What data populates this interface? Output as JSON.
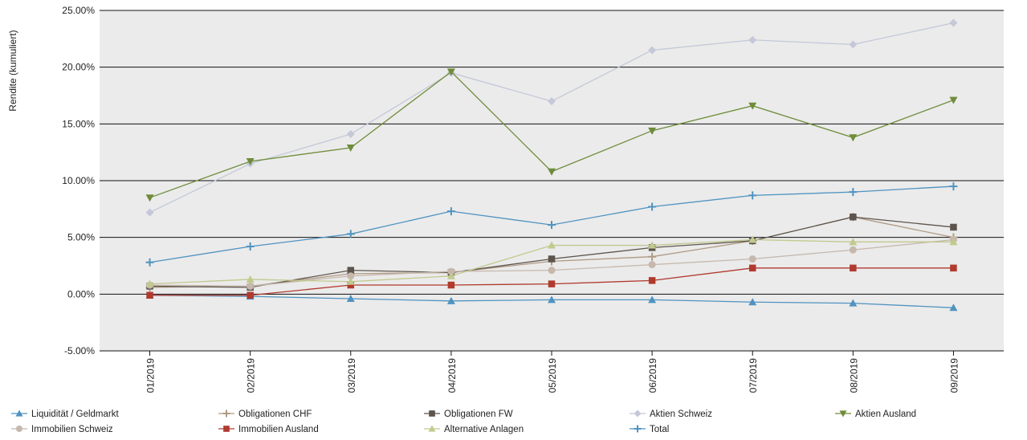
{
  "chart_data": {
    "type": "line",
    "ylabel": "Rendite (kumuliert)",
    "xlabel": "",
    "categories": [
      "01/2019",
      "02/2019",
      "03/2019",
      "04/2019",
      "05/2019",
      "06/2019",
      "07/2019",
      "08/2019",
      "09/2019"
    ],
    "ylim": [
      -5,
      25
    ],
    "yticks": [
      -5,
      0,
      5,
      10,
      15,
      20,
      25
    ],
    "ytick_labels": [
      "-5.00%",
      "0.00%",
      "5.00%",
      "10.00%",
      "15.00%",
      "20.00%",
      "25.00%"
    ],
    "grid": "horizontal",
    "background": "#ebebeb",
    "legend_position": "bottom",
    "series": [
      {
        "name": "Liquidität / Geldmarkt",
        "color": "#4f93c0",
        "marker": "triangle-up",
        "values": [
          -0.1,
          -0.2,
          -0.4,
          -0.6,
          -0.5,
          -0.5,
          -0.7,
          -0.8,
          -1.2
        ]
      },
      {
        "name": "Obligationen CHF",
        "color": "#b09a84",
        "marker": "plus",
        "values": [
          0.6,
          0.7,
          1.8,
          1.9,
          2.9,
          3.3,
          4.7,
          6.8,
          5.0
        ]
      },
      {
        "name": "Obligationen FW",
        "color": "#5d554d",
        "marker": "square",
        "values": [
          0.7,
          0.6,
          2.1,
          1.9,
          3.1,
          4.1,
          4.7,
          6.8,
          5.9
        ]
      },
      {
        "name": "Aktien Schweiz",
        "color": "#c4c8d8",
        "marker": "diamond",
        "values": [
          7.2,
          11.5,
          14.1,
          19.5,
          17.0,
          21.5,
          22.4,
          22.0,
          23.9
        ]
      },
      {
        "name": "Aktien Ausland",
        "color": "#6f8c3a",
        "marker": "triangle-down",
        "values": [
          8.5,
          11.7,
          12.9,
          19.6,
          10.8,
          14.4,
          16.6,
          13.8,
          17.1
        ]
      },
      {
        "name": "Immobilien Schweiz",
        "color": "#c6b8ad",
        "marker": "circle",
        "values": [
          0.8,
          0.7,
          1.6,
          2.0,
          2.1,
          2.6,
          3.1,
          3.9,
          4.8
        ]
      },
      {
        "name": "Immobilien Ausland",
        "color": "#b03a2e",
        "marker": "square",
        "values": [
          -0.1,
          -0.1,
          0.8,
          0.8,
          0.9,
          1.2,
          2.3,
          2.3,
          2.3
        ]
      },
      {
        "name": "Alternative Anlagen",
        "color": "#c2c98e",
        "marker": "triangle-up",
        "values": [
          0.9,
          1.3,
          1.1,
          1.6,
          4.3,
          4.3,
          4.8,
          4.6,
          4.6
        ]
      },
      {
        "name": "Total",
        "color": "#4f93c0",
        "marker": "plus",
        "values": [
          2.8,
          4.2,
          5.3,
          7.3,
          6.1,
          7.7,
          8.7,
          9.0,
          9.5
        ]
      }
    ]
  }
}
